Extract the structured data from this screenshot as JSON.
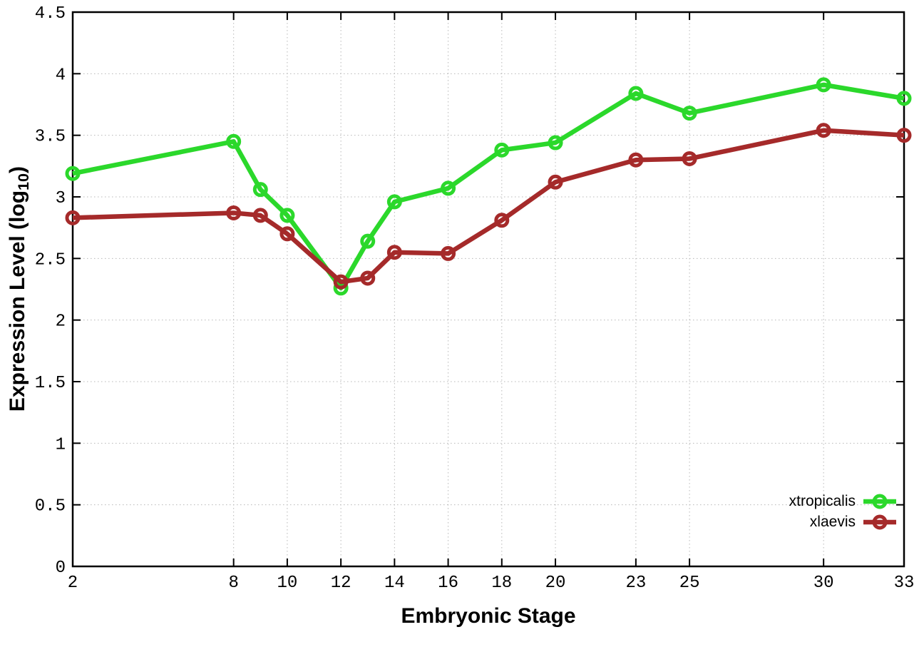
{
  "chart_data": {
    "type": "line",
    "title": "",
    "xlabel": "Embryonic Stage",
    "ylabel": {
      "prefix": "Expression Level (log",
      "sub": "10",
      "suffix": ")"
    },
    "x": [
      2,
      8,
      9,
      10,
      12,
      13,
      14,
      16,
      18,
      20,
      23,
      25,
      30,
      33
    ],
    "x_tick_labels": [
      2,
      8,
      10,
      12,
      14,
      16,
      18,
      20,
      23,
      25,
      30,
      33
    ],
    "xlim": [
      2,
      33
    ],
    "ylim": [
      0,
      4.5
    ],
    "y_tick_step": 0.5,
    "grid": "dotted",
    "legend_position": "bottom-right-inside",
    "series": [
      {
        "name": "xtropicalis",
        "color": "#2bd82b",
        "values": [
          3.19,
          3.45,
          3.06,
          2.85,
          2.26,
          2.64,
          2.96,
          3.07,
          3.38,
          3.44,
          3.84,
          3.68,
          3.91,
          3.8
        ]
      },
      {
        "name": "xlaevis",
        "color": "#a52a2a",
        "values": [
          2.83,
          2.87,
          2.85,
          2.7,
          2.31,
          2.34,
          2.55,
          2.54,
          2.81,
          3.12,
          3.3,
          3.31,
          3.54,
          3.5
        ]
      }
    ],
    "colors": {
      "axis": "#000000",
      "grid": "#b8b8b8",
      "background": "#ffffff"
    }
  }
}
